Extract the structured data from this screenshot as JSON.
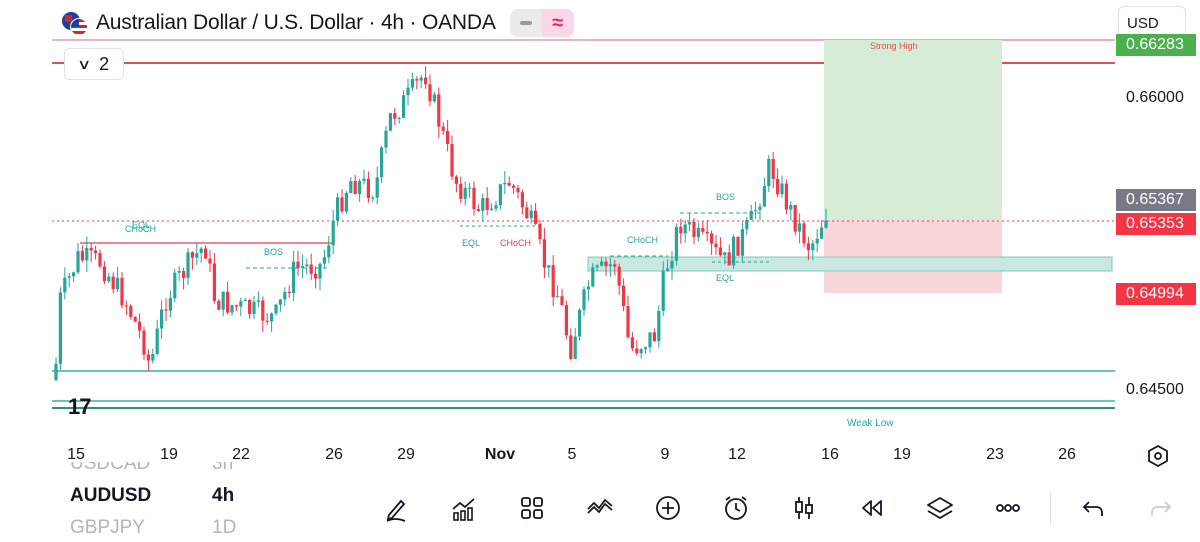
{
  "header": {
    "title": "Australian Dollar / U.S. Dollar · 4h · OANDA",
    "icons": [
      "aud-usd-flag-icon",
      "minus-icon",
      "approx-icon"
    ]
  },
  "legend_toggle": {
    "count": "2"
  },
  "currency": {
    "label": "USD"
  },
  "price_scale": {
    "ticks": [
      "0.66000",
      "0.64500"
    ],
    "top_tag": "0.66283",
    "tag_mid": "0.65367",
    "tag_current": "0.65353",
    "tag_stop": "0.64994",
    "colors": {
      "green": "#26a69a",
      "red": "#f23645",
      "gray": "#787b86",
      "tp_green": "#4caf50"
    }
  },
  "time_axis": [
    "15",
    "19",
    "22",
    "26",
    "29",
    "Nov",
    "5",
    "9",
    "12",
    "16",
    "19",
    "23",
    "26"
  ],
  "annotations": {
    "strong_high": "Strong High",
    "weak_low": "Weak Low",
    "choch_1": "CHoCH",
    "eql_1": "EQL",
    "bos_1": "BOS",
    "eql_2": "EQL",
    "choch_2": "CHoCH",
    "choch_3": "CHoCH",
    "bos_2": "BOS",
    "eql_3": "EQL"
  },
  "watchlist": [
    {
      "symbol": "USDCAD",
      "interval": "3h"
    },
    {
      "symbol": "AUDUSD",
      "interval": "4h"
    },
    {
      "symbol": "GBPJPY",
      "interval": "1D"
    }
  ],
  "toolbar_icons": [
    "draw-icon",
    "indicators-icon",
    "layouts-icon",
    "patterns-icon",
    "add-icon",
    "alert-icon",
    "candles-icon",
    "replay-icon",
    "layers-icon",
    "more-icon",
    "undo-icon",
    "redo-icon"
  ],
  "chart_data": {
    "type": "candlestick",
    "symbol": "AUDUSD",
    "interval": "4h",
    "x": [
      "15",
      "19",
      "22",
      "26",
      "29",
      "Nov",
      "5",
      "9",
      "12",
      "16",
      "19",
      "23",
      "26"
    ],
    "ylim": [
      0.644,
      0.6635
    ],
    "levels": {
      "strong_high": 0.6627,
      "range_high": 0.662,
      "weak_low": 0.6457,
      "weak_low_2": 0.645,
      "demand_zone": [
        0.6506,
        0.6512
      ],
      "current": 0.65353,
      "mid_tag": 0.65367,
      "stop": 0.64994,
      "take_profit": 0.66283
    },
    "grid": false
  }
}
